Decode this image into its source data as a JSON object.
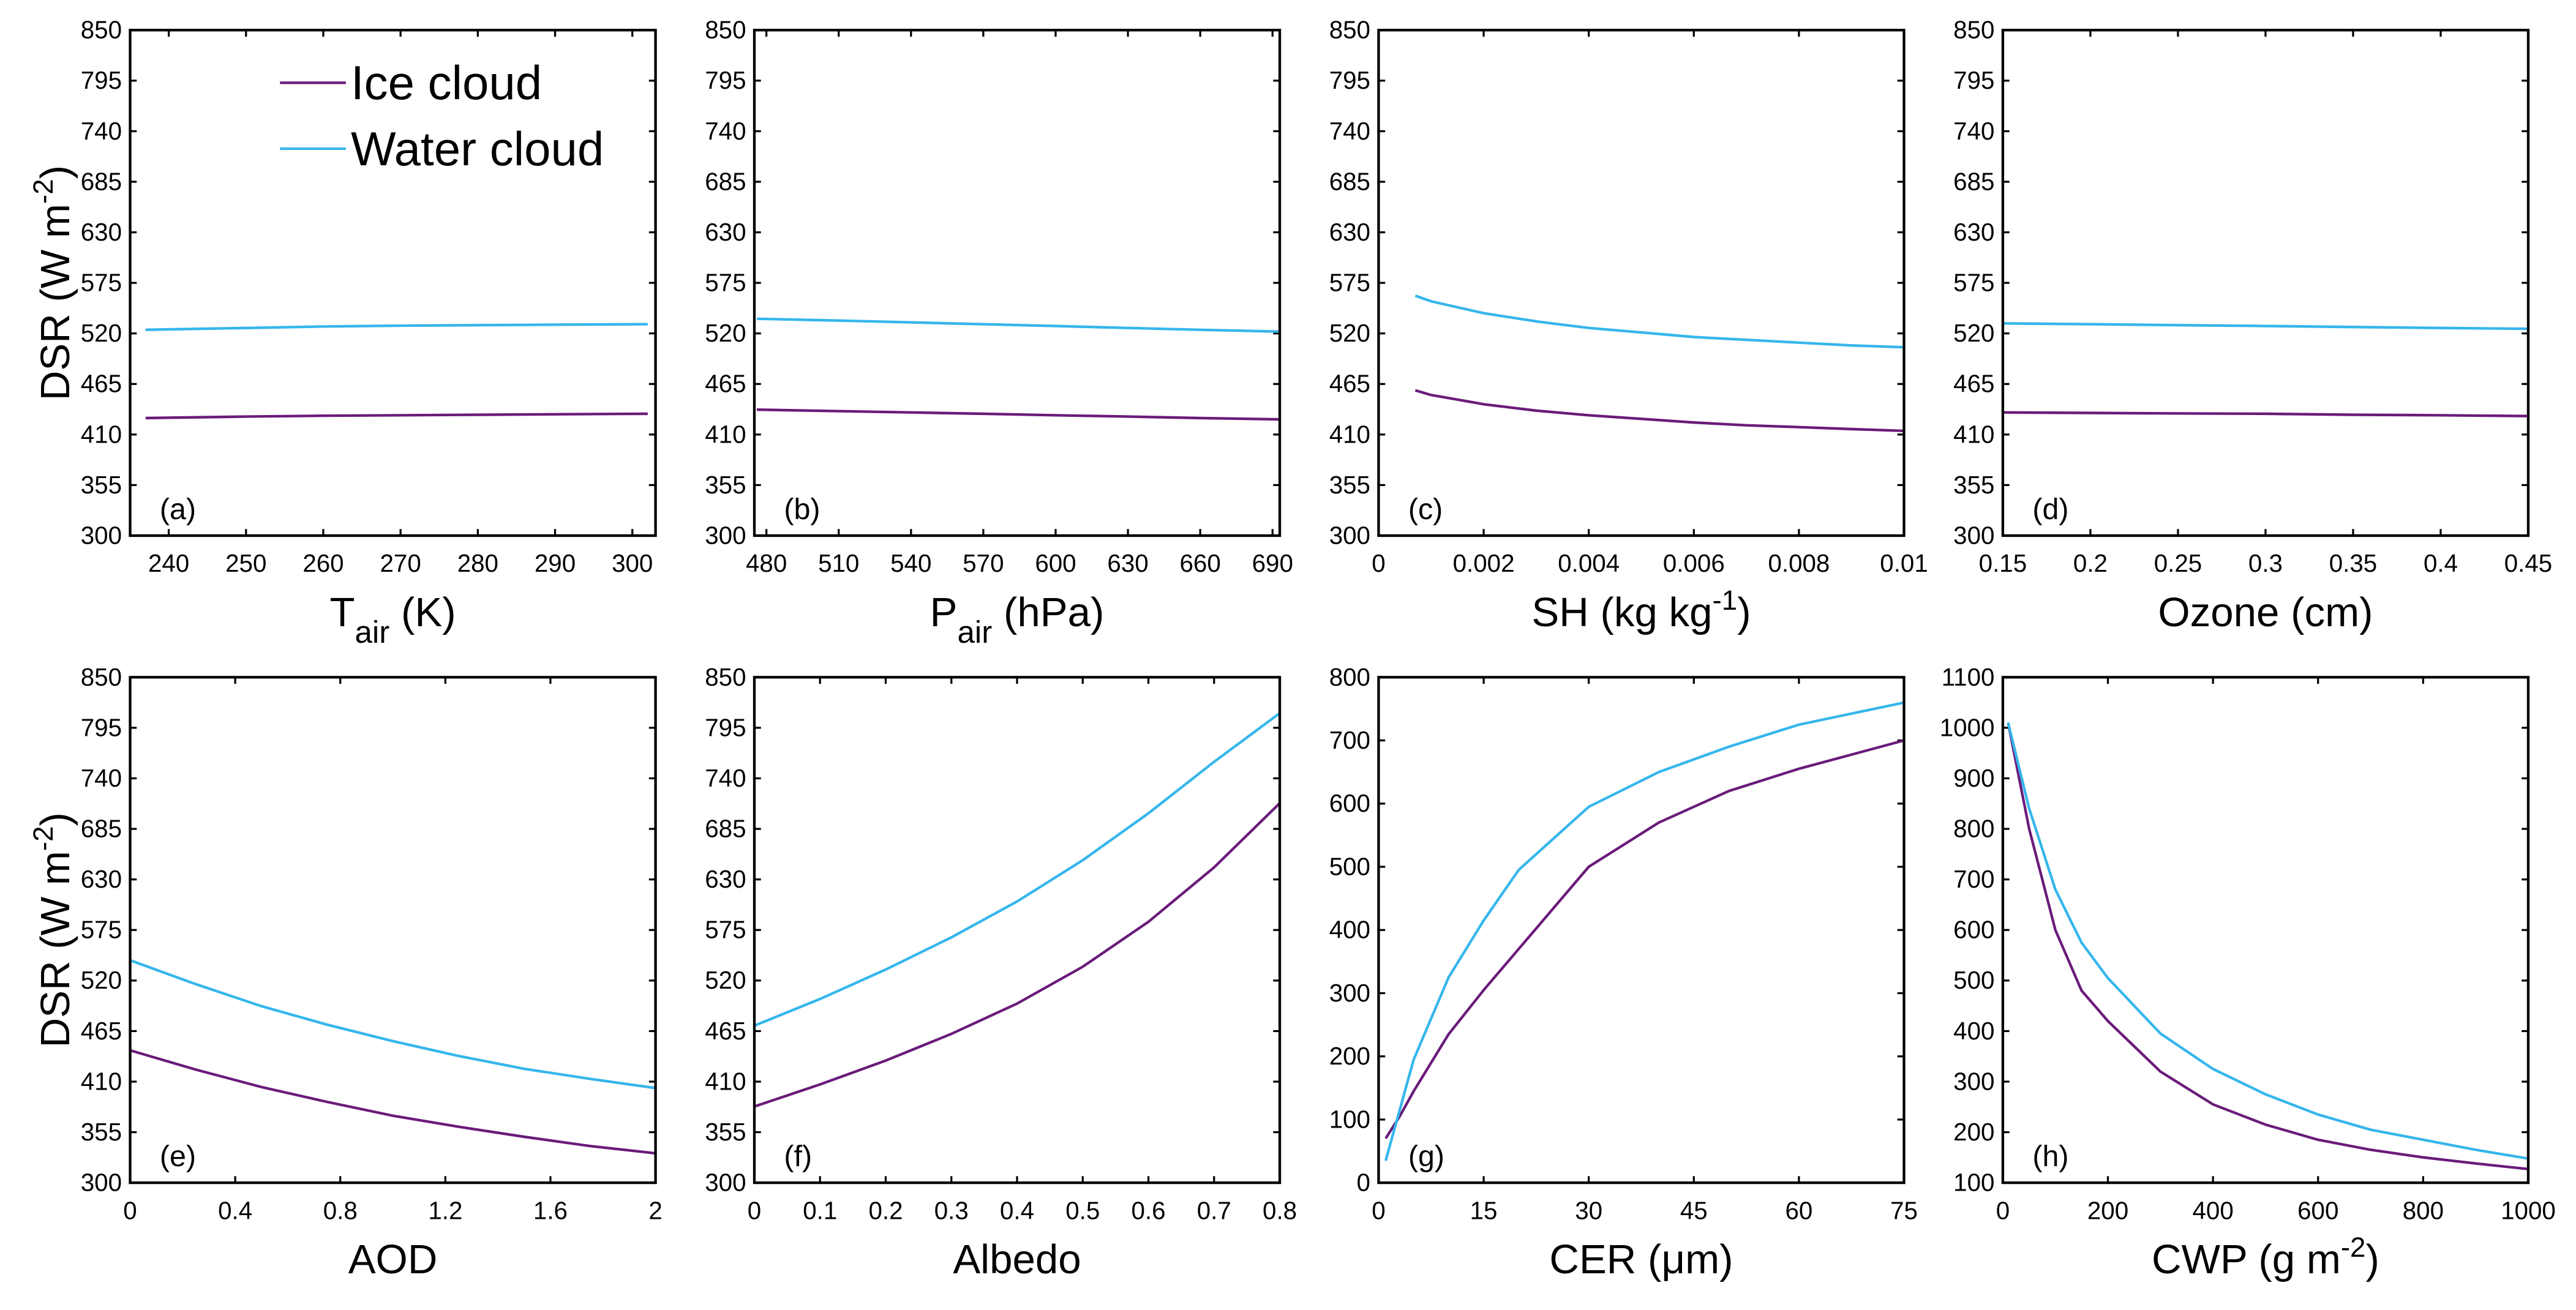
{
  "legend": {
    "ice": "Ice cloud",
    "water": "Water cloud"
  },
  "colors": {
    "ice": "#6a1b7a",
    "water": "#35b6ec"
  },
  "ylabel": {
    "main": "DSR (W m",
    "sup": "-2",
    "end": ")"
  },
  "chart_data": [
    {
      "type": "line",
      "panel": "(a)",
      "xlabel": {
        "main": "T",
        "sub": "air",
        "end": " (K)"
      },
      "xlim": [
        235,
        303
      ],
      "ylim": [
        300,
        850
      ],
      "xticks": [
        240,
        250,
        260,
        270,
        280,
        290,
        300
      ],
      "xtick_labels": [
        "240",
        "250",
        "260",
        "270",
        "280",
        "290",
        "300"
      ],
      "yticks": [
        300,
        355,
        410,
        465,
        520,
        575,
        630,
        685,
        740,
        795,
        850
      ],
      "ytick_labels": [
        "300",
        "355",
        "410",
        "465",
        "520",
        "575",
        "630",
        "685",
        "740",
        "795",
        "850"
      ],
      "x": [
        237,
        250,
        260,
        270,
        280,
        290,
        302
      ],
      "series": [
        {
          "name": "Ice cloud",
          "values": [
            428,
            429.5,
            430.5,
            431,
            431.5,
            432,
            432.5
          ]
        },
        {
          "name": "Water cloud",
          "values": [
            524,
            526,
            527.5,
            528.5,
            529,
            529.5,
            530
          ]
        }
      ]
    },
    {
      "type": "line",
      "panel": "(b)",
      "xlabel": {
        "main": "P",
        "sub": "air",
        "end": " (hPa)"
      },
      "xlim": [
        475,
        693
      ],
      "ylim": [
        300,
        850
      ],
      "xticks": [
        480,
        510,
        540,
        570,
        600,
        630,
        660,
        690
      ],
      "xtick_labels": [
        "480",
        "510",
        "540",
        "570",
        "600",
        "630",
        "660",
        "690"
      ],
      "yticks": [
        300,
        355,
        410,
        465,
        520,
        575,
        630,
        685,
        740,
        795,
        850
      ],
      "ytick_labels": [
        "300",
        "355",
        "410",
        "465",
        "520",
        "575",
        "630",
        "685",
        "740",
        "795",
        "850"
      ],
      "x": [
        476,
        510,
        540,
        570,
        600,
        630,
        660,
        693
      ],
      "series": [
        {
          "name": "Ice cloud",
          "values": [
            437,
            435.5,
            434,
            432.5,
            431,
            429.5,
            428,
            426.5
          ]
        },
        {
          "name": "Water cloud",
          "values": [
            536,
            534,
            532,
            530,
            528,
            526,
            524,
            522
          ]
        }
      ]
    },
    {
      "type": "line",
      "panel": "(c)",
      "xlabel": {
        "main": "SH (kg kg",
        "sup": "-1",
        "end": ")"
      },
      "xlim": [
        0,
        0.01
      ],
      "ylim": [
        300,
        850
      ],
      "xticks": [
        0,
        0.002,
        0.004,
        0.006,
        0.008,
        0.01
      ],
      "xtick_labels": [
        "0",
        "0.002",
        "0.004",
        "0.006",
        "0.008",
        "0.01"
      ],
      "yticks": [
        300,
        355,
        410,
        465,
        520,
        575,
        630,
        685,
        740,
        795,
        850
      ],
      "ytick_labels": [
        "300",
        "355",
        "410",
        "465",
        "520",
        "575",
        "630",
        "685",
        "740",
        "795",
        "850"
      ],
      "x": [
        0.0007,
        0.001,
        0.002,
        0.003,
        0.004,
        0.005,
        0.006,
        0.007,
        0.008,
        0.009,
        0.01
      ],
      "series": [
        {
          "name": "Ice cloud",
          "values": [
            458,
            453,
            443,
            436,
            431,
            427,
            423,
            420,
            418,
            416,
            414
          ]
        },
        {
          "name": "Water cloud",
          "values": [
            561,
            555,
            542,
            533,
            526,
            521,
            516,
            513,
            510,
            507,
            505
          ]
        }
      ]
    },
    {
      "type": "line",
      "panel": "(d)",
      "xlabel": {
        "main": "Ozone (cm)"
      },
      "xlim": [
        0.15,
        0.45
      ],
      "ylim": [
        300,
        850
      ],
      "xticks": [
        0.15,
        0.2,
        0.25,
        0.3,
        0.35,
        0.4,
        0.45
      ],
      "xtick_labels": [
        "0.15",
        "0.2",
        "0.25",
        "0.3",
        "0.35",
        "0.4",
        "0.45"
      ],
      "yticks": [
        300,
        355,
        410,
        465,
        520,
        575,
        630,
        685,
        740,
        795,
        850
      ],
      "ytick_labels": [
        "300",
        "355",
        "410",
        "465",
        "520",
        "575",
        "630",
        "685",
        "740",
        "795",
        "850"
      ],
      "x": [
        0.15,
        0.2,
        0.25,
        0.3,
        0.35,
        0.4,
        0.45
      ],
      "series": [
        {
          "name": "Ice cloud",
          "values": [
            434,
            433.5,
            433,
            432.5,
            431.5,
            431,
            430
          ]
        },
        {
          "name": "Water cloud",
          "values": [
            531,
            530,
            529,
            528,
            527,
            526,
            525
          ]
        }
      ]
    },
    {
      "type": "line",
      "panel": "(e)",
      "xlabel": {
        "main": "AOD"
      },
      "xlim": [
        0,
        2
      ],
      "ylim": [
        300,
        850
      ],
      "xticks": [
        0,
        0.4,
        0.8,
        1.2,
        1.6,
        2
      ],
      "xtick_labels": [
        "0",
        "0.4",
        "0.8",
        "1.2",
        "1.6",
        "2"
      ],
      "yticks": [
        300,
        355,
        410,
        465,
        520,
        575,
        630,
        685,
        740,
        795,
        850
      ],
      "ytick_labels": [
        "300",
        "355",
        "410",
        "465",
        "520",
        "575",
        "630",
        "685",
        "740",
        "795",
        "850"
      ],
      "x": [
        0,
        0.25,
        0.5,
        0.75,
        1,
        1.25,
        1.5,
        1.75,
        2
      ],
      "series": [
        {
          "name": "Ice cloud",
          "values": [
            444,
            423,
            404,
            388,
            373,
            361,
            350,
            340,
            332
          ]
        },
        {
          "name": "Water cloud",
          "values": [
            542,
            516,
            492,
            472,
            454,
            438,
            424,
            413,
            403
          ]
        }
      ]
    },
    {
      "type": "line",
      "panel": "(f)",
      "xlabel": {
        "main": "Albedo"
      },
      "xlim": [
        0,
        0.8
      ],
      "ylim": [
        300,
        850
      ],
      "xticks": [
        0,
        0.1,
        0.2,
        0.3,
        0.4,
        0.5,
        0.6,
        0.7,
        0.8
      ],
      "xtick_labels": [
        "0",
        "0.1",
        "0.2",
        "0.3",
        "0.4",
        "0.5",
        "0.6",
        "0.7",
        "0.8"
      ],
      "yticks": [
        300,
        355,
        410,
        465,
        520,
        575,
        630,
        685,
        740,
        795,
        850
      ],
      "ytick_labels": [
        "300",
        "355",
        "410",
        "465",
        "520",
        "575",
        "630",
        "685",
        "740",
        "795",
        "850"
      ],
      "x": [
        0,
        0.1,
        0.2,
        0.3,
        0.4,
        0.5,
        0.6,
        0.7,
        0.8
      ],
      "series": [
        {
          "name": "Ice cloud",
          "values": [
            383,
            407,
            433,
            462,
            495,
            535,
            584,
            643,
            713
          ]
        },
        {
          "name": "Water cloud",
          "values": [
            471,
            500,
            532,
            567,
            606,
            651,
            702,
            758,
            811
          ]
        }
      ]
    },
    {
      "type": "line",
      "panel": "(g)",
      "xlabel": {
        "main": "CER (μm)"
      },
      "xlim": [
        0,
        75
      ],
      "ylim": [
        0,
        800
      ],
      "xticks": [
        0,
        15,
        30,
        45,
        60,
        75
      ],
      "xtick_labels": [
        "0",
        "15",
        "30",
        "45",
        "60",
        "75"
      ],
      "yticks": [
        0,
        100,
        200,
        300,
        400,
        500,
        600,
        700,
        800
      ],
      "ytick_labels": [
        "0",
        "100",
        "200",
        "300",
        "400",
        "500",
        "600",
        "700",
        "800"
      ],
      "x": [
        1,
        3,
        5,
        10,
        15,
        20,
        30,
        40,
        50,
        60,
        75
      ],
      "series": [
        {
          "name": "Ice cloud",
          "values": [
            70,
            105,
            145,
            235,
            305,
            370,
            500,
            570,
            620,
            655,
            700
          ]
        },
        {
          "name": "Water cloud",
          "values": [
            35,
            115,
            195,
            325,
            415,
            495,
            595,
            650,
            690,
            725,
            760
          ]
        }
      ]
    },
    {
      "type": "line",
      "panel": "(h)",
      "xlabel": {
        "main": "CWP (g m",
        "sup": "-2",
        "end": ")"
      },
      "xlim": [
        0,
        1000
      ],
      "ylim": [
        100,
        1100
      ],
      "xticks": [
        0,
        200,
        400,
        600,
        800,
        1000
      ],
      "xtick_labels": [
        "0",
        "200",
        "400",
        "600",
        "800",
        "1000"
      ],
      "yticks": [
        100,
        200,
        300,
        400,
        500,
        600,
        700,
        800,
        900,
        1000,
        1100
      ],
      "ytick_labels": [
        "100",
        "200",
        "300",
        "400",
        "500",
        "600",
        "700",
        "800",
        "900",
        "1000",
        "1100"
      ],
      "x": [
        10,
        50,
        100,
        150,
        200,
        300,
        400,
        500,
        600,
        700,
        800,
        900,
        1000
      ],
      "series": [
        {
          "name": "Ice cloud",
          "values": [
            1010,
            800,
            600,
            480,
            420,
            320,
            255,
            215,
            185,
            165,
            150,
            138,
            127
          ]
        },
        {
          "name": "Water cloud",
          "values": [
            1010,
            840,
            680,
            575,
            505,
            395,
            325,
            275,
            235,
            205,
            185,
            165,
            148
          ]
        }
      ]
    }
  ]
}
